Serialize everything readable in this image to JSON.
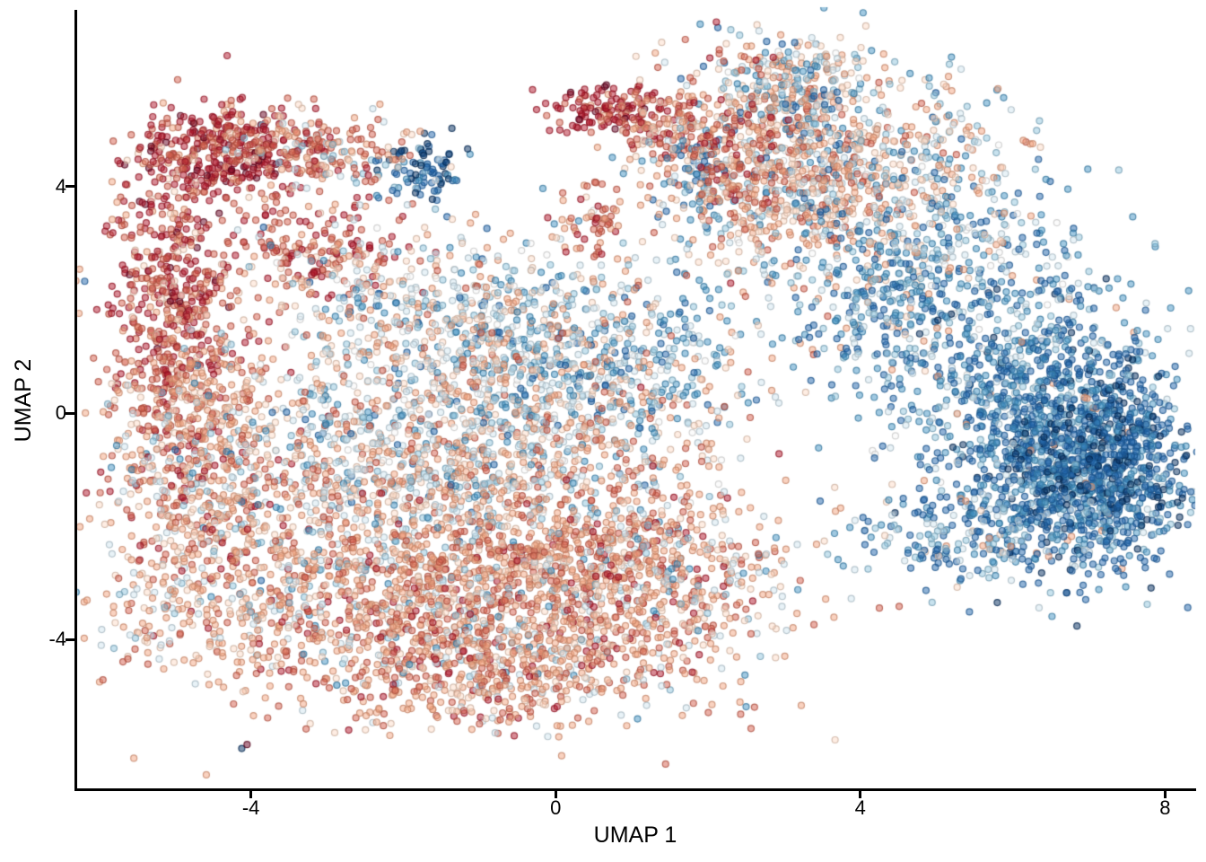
{
  "figure": {
    "xlabel": "UMAP 1",
    "ylabel": "UMAP 2",
    "x_tick_labels": [
      "-4",
      "0",
      "4",
      "8"
    ],
    "y_tick_labels": [
      "-4",
      "0",
      "4"
    ]
  },
  "chart_data": {
    "type": "scatter",
    "title": "",
    "xlabel": "UMAP 1",
    "ylabel": "UMAP 2",
    "xlim": [
      -6.3,
      8.4
    ],
    "ylim": [
      -6.7,
      7.1
    ],
    "x_ticks": [
      -4,
      0,
      4,
      8
    ],
    "y_ticks": [
      -4,
      0,
      4
    ],
    "grid": false,
    "legend": "none",
    "axis_color": "#000000",
    "background": "#ffffff",
    "point_radius_px": 3.5,
    "point_fill_alpha": 0.5,
    "point_stroke_alpha": 0.78,
    "palette": {
      "darkred2": "#67001f",
      "darkred": "#b2182b",
      "red": "#d6604d",
      "salmon": "#f4a582",
      "lightpeach": "#fddbc7",
      "nearwhite": "#f7f7f7",
      "lightblue": "#d1e5f0",
      "midlightblue": "#92c5de",
      "midblue": "#4393c3",
      "darkblue": "#2166ac",
      "navy": "#053061"
    },
    "clusters": [
      {
        "name": "arc-top-dark-red",
        "cx": -4.35,
        "cy": 4.55,
        "sx": 0.6,
        "sy": 0.45,
        "n": 380,
        "w": {
          "darkred": 0.5,
          "darkred2": 0.08,
          "red": 0.3,
          "salmon": 0.09,
          "lightpeach": 0.03
        }
      },
      {
        "name": "arc-top-inner",
        "cx": -3.5,
        "cy": 4.75,
        "sx": 0.5,
        "sy": 0.3,
        "n": 110,
        "w": {
          "red": 0.35,
          "salmon": 0.3,
          "darkred": 0.15,
          "lightpeach": 0.1,
          "midlightblue": 0.05,
          "lightblue": 0.05
        }
      },
      {
        "name": "arc-left",
        "cx": -5.05,
        "cy": 2.6,
        "sx": 0.42,
        "sy": 0.95,
        "n": 340,
        "w": {
          "darkred": 0.45,
          "darkred2": 0.05,
          "red": 0.3,
          "salmon": 0.15,
          "lightpeach": 0.05
        }
      },
      {
        "name": "arc-left-lower",
        "cx": -4.95,
        "cy": 0.6,
        "sx": 0.5,
        "sy": 0.8,
        "n": 300,
        "w": {
          "darkred": 0.25,
          "red": 0.35,
          "salmon": 0.28,
          "lightpeach": 0.12
        }
      },
      {
        "name": "arc-hook",
        "cx": -3.1,
        "cy": 2.9,
        "sx": 0.55,
        "sy": 0.5,
        "n": 180,
        "w": {
          "darkred": 0.3,
          "red": 0.35,
          "salmon": 0.22,
          "lightpeach": 0.1,
          "lightblue": 0.03
        }
      },
      {
        "name": "blue-spot-top-left",
        "cx": -1.75,
        "cy": 4.3,
        "sx": 0.27,
        "sy": 0.28,
        "n": 90,
        "w": {
          "navy": 0.25,
          "darkblue": 0.5,
          "midblue": 0.18,
          "midlightblue": 0.07
        }
      },
      {
        "name": "trail-to-blue-spot",
        "cx": -2.65,
        "cy": 4.5,
        "sx": 0.45,
        "sy": 0.33,
        "n": 80,
        "w": {
          "red": 0.28,
          "salmon": 0.3,
          "lightpeach": 0.15,
          "lightblue": 0.12,
          "midlightblue": 0.1,
          "darkred": 0.05
        }
      },
      {
        "name": "left-mid-band",
        "cx": -4.6,
        "cy": -1.4,
        "sx": 0.65,
        "sy": 1.15,
        "n": 540,
        "w": {
          "salmon": 0.38,
          "red": 0.2,
          "lightpeach": 0.15,
          "darkred": 0.07,
          "lightblue": 0.12,
          "midlightblue": 0.05,
          "midblue": 0.03
        }
      },
      {
        "name": "center-blue-band",
        "cx": 0.2,
        "cy": 1.0,
        "sx": 1.3,
        "sy": 0.9,
        "n": 650,
        "w": {
          "midblue": 0.27,
          "darkblue": 0.13,
          "midlightblue": 0.15,
          "lightblue": 0.18,
          "lightpeach": 0.08,
          "salmon": 0.13,
          "nearwhite": 0.06
        }
      },
      {
        "name": "center-mix",
        "cx": -1.3,
        "cy": -0.6,
        "sx": 1.7,
        "sy": 1.2,
        "n": 1500,
        "w": {
          "salmon": 0.28,
          "lightpeach": 0.16,
          "lightblue": 0.18,
          "midlightblue": 0.1,
          "midblue": 0.08,
          "red": 0.12,
          "nearwhite": 0.05,
          "darkblue": 0.03
        }
      },
      {
        "name": "center-upper-sparse",
        "cx": -1.5,
        "cy": 1.9,
        "sx": 1.05,
        "sy": 0.75,
        "n": 300,
        "w": {
          "lightblue": 0.22,
          "lightpeach": 0.2,
          "salmon": 0.22,
          "midlightblue": 0.12,
          "midblue": 0.08,
          "nearwhite": 0.1,
          "red": 0.06
        }
      },
      {
        "name": "bottom-cloud",
        "cx": -1.5,
        "cy": -3.3,
        "sx": 1.8,
        "sy": 0.95,
        "n": 1650,
        "w": {
          "salmon": 0.42,
          "red": 0.22,
          "lightpeach": 0.15,
          "darkred": 0.06,
          "lightblue": 0.08,
          "midlightblue": 0.04,
          "midblue": 0.03
        }
      },
      {
        "name": "bottom-tail",
        "cx": -0.8,
        "cy": -4.65,
        "sx": 1.3,
        "sy": 0.45,
        "n": 330,
        "w": {
          "salmon": 0.42,
          "red": 0.25,
          "lightpeach": 0.15,
          "darkred": 0.07,
          "lightblue": 0.08,
          "midblue": 0.03
        }
      },
      {
        "name": "bottom-right-lobe",
        "cx": 0.9,
        "cy": -2.7,
        "sx": 0.85,
        "sy": 0.9,
        "n": 430,
        "w": {
          "salmon": 0.38,
          "red": 0.26,
          "darkred": 0.1,
          "lightpeach": 0.14,
          "lightblue": 0.08,
          "midlightblue": 0.04
        }
      },
      {
        "name": "top-mid-dark-red",
        "cx": 0.75,
        "cy": 5.35,
        "sx": 0.45,
        "sy": 0.23,
        "n": 135,
        "w": {
          "darkred": 0.55,
          "darkred2": 0.1,
          "red": 0.27,
          "salmon": 0.08
        }
      },
      {
        "name": "top-mid-trail",
        "cx": 1.55,
        "cy": 4.95,
        "sx": 0.5,
        "sy": 0.3,
        "n": 115,
        "w": {
          "red": 0.33,
          "salmon": 0.32,
          "darkred": 0.17,
          "lightpeach": 0.13,
          "lightblue": 0.05
        }
      },
      {
        "name": "top-mid-blue-streak",
        "cx": 1.85,
        "cy": 4.1,
        "sx": 0.22,
        "sy": 0.45,
        "n": 48,
        "w": {
          "darkblue": 0.45,
          "midblue": 0.3,
          "midlightblue": 0.15,
          "lightblue": 0.1
        }
      },
      {
        "name": "small-red-clump",
        "cx": 0.5,
        "cy": 3.3,
        "sx": 0.23,
        "sy": 0.3,
        "n": 60,
        "w": {
          "red": 0.38,
          "salmon": 0.32,
          "darkred": 0.22,
          "lightpeach": 0.08
        }
      },
      {
        "name": "upper-right-mass",
        "cx": 3.3,
        "cy": 4.3,
        "sx": 1.0,
        "sy": 0.95,
        "n": 980,
        "w": {
          "salmon": 0.32,
          "lightpeach": 0.2,
          "red": 0.12,
          "midlightblue": 0.09,
          "midblue": 0.09,
          "lightblue": 0.09,
          "darkblue": 0.05,
          "nearwhite": 0.04
        }
      },
      {
        "name": "upper-right-top",
        "cx": 3.1,
        "cy": 5.85,
        "sx": 0.75,
        "sy": 0.4,
        "n": 210,
        "w": {
          "midblue": 0.2,
          "midlightblue": 0.15,
          "lightblue": 0.15,
          "salmon": 0.22,
          "lightpeach": 0.13,
          "darkblue": 0.1,
          "nearwhite": 0.05
        }
      },
      {
        "name": "upper-right-red-edge",
        "cx": 2.35,
        "cy": 4.55,
        "sx": 0.35,
        "sy": 0.8,
        "n": 160,
        "w": {
          "red": 0.38,
          "darkred": 0.25,
          "salmon": 0.25,
          "lightpeach": 0.12
        }
      },
      {
        "name": "bridge-blue",
        "cx": 4.35,
        "cy": 2.0,
        "sx": 0.6,
        "sy": 0.8,
        "n": 310,
        "w": {
          "midblue": 0.32,
          "darkblue": 0.28,
          "midlightblue": 0.15,
          "lightblue": 0.12,
          "salmon": 0.07,
          "lightpeach": 0.06
        }
      },
      {
        "name": "right-top-sparse",
        "cx": 5.6,
        "cy": 2.7,
        "sx": 0.8,
        "sy": 0.65,
        "n": 180,
        "w": {
          "midblue": 0.28,
          "darkblue": 0.24,
          "midlightblue": 0.18,
          "lightblue": 0.15,
          "salmon": 0.08,
          "nearwhite": 0.07
        }
      },
      {
        "name": "right-main-blue",
        "cx": 6.2,
        "cy": 0.35,
        "sx": 0.85,
        "sy": 1.0,
        "n": 820,
        "w": {
          "darkblue": 0.42,
          "midblue": 0.28,
          "midlightblue": 0.12,
          "lightblue": 0.1,
          "navy": 0.05,
          "nearwhite": 0.02,
          "salmon": 0.01
        }
      },
      {
        "name": "right-dense-blue",
        "cx": 6.9,
        "cy": -1.2,
        "sx": 0.65,
        "sy": 0.78,
        "n": 820,
        "w": {
          "darkblue": 0.48,
          "navy": 0.14,
          "midblue": 0.24,
          "midlightblue": 0.08,
          "lightblue": 0.04,
          "salmon": 0.02
        }
      },
      {
        "name": "right-bottom-tail",
        "cx": 5.4,
        "cy": -2.1,
        "sx": 0.78,
        "sy": 0.45,
        "n": 220,
        "w": {
          "darkblue": 0.32,
          "midblue": 0.28,
          "midlightblue": 0.18,
          "lightblue": 0.15,
          "lightpeach": 0.04,
          "salmon": 0.03
        }
      },
      {
        "name": "far-right-edge",
        "cx": 7.55,
        "cy": -0.6,
        "sx": 0.35,
        "sy": 0.85,
        "n": 260,
        "w": {
          "darkblue": 0.5,
          "navy": 0.2,
          "midblue": 0.22,
          "midlightblue": 0.08
        }
      },
      {
        "name": "right-upper-sparse",
        "cx": 5.3,
        "cy": 4.3,
        "sx": 0.6,
        "sy": 0.75,
        "n": 120,
        "w": {
          "lightblue": 0.22,
          "midlightblue": 0.18,
          "midblue": 0.15,
          "salmon": 0.18,
          "lightpeach": 0.12,
          "nearwhite": 0.08,
          "darkblue": 0.07
        }
      },
      {
        "name": "bottom-left-sparse",
        "cx": -5.3,
        "cy": -3.6,
        "sx": 0.4,
        "sy": 0.45,
        "n": 45,
        "w": {
          "salmon": 0.3,
          "lightblue": 0.25,
          "lightpeach": 0.2,
          "red": 0.15,
          "midlightblue": 0.1
        }
      },
      {
        "name": "bottom-right-sparse",
        "cx": 1.95,
        "cy": -2.9,
        "sx": 0.6,
        "sy": 0.65,
        "n": 90,
        "w": {
          "lightblue": 0.25,
          "midlightblue": 0.15,
          "midblue": 0.12,
          "salmon": 0.25,
          "lightpeach": 0.18,
          "red": 0.05
        }
      }
    ],
    "singles": [
      {
        "x": -4.12,
        "y": -5.92,
        "c": "navy"
      },
      {
        "x": -4.05,
        "y": -5.85,
        "c": "darkred2"
      },
      {
        "x": -3.78,
        "y": -5.38,
        "c": "red"
      }
    ]
  }
}
